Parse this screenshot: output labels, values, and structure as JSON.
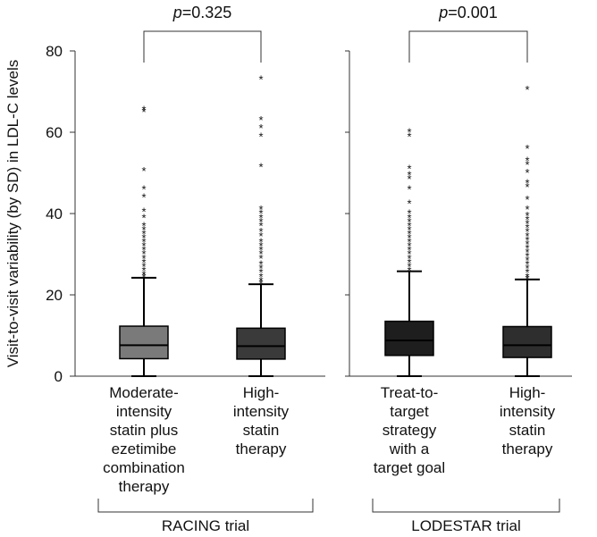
{
  "chart_data": {
    "type": "boxplot",
    "ylabel": "Visit-to-visit variability (by SD) in LDL-C levels",
    "ylim": [
      0,
      80
    ],
    "yticks": [
      0,
      20,
      40,
      60,
      80
    ],
    "groups": [
      {
        "name": "RACING trial",
        "p_value": "0.325",
        "series": [
          {
            "label_lines": [
              "Moderate-",
              "intensity",
              "statin plus",
              "ezetimibe",
              "combination",
              "therapy"
            ],
            "color": "#7a7a7a",
            "min": 0,
            "q1": 4.3,
            "median": 7.6,
            "q3": 12.3,
            "whisker_high": 24.2,
            "outliers": [
              66.0,
              65.5,
              51.0,
              46.5,
              44.5,
              41.0,
              39.5,
              37.5,
              36.5,
              35.5,
              34.5,
              33.5,
              32.5,
              31.5,
              30.5,
              29.5,
              28.5,
              27.5,
              26.5,
              25.5,
              24.8
            ]
          },
          {
            "label_lines": [
              "High-",
              "intensity",
              "statin",
              "therapy"
            ],
            "color": "#3a3a3a",
            "min": 0,
            "q1": 4.2,
            "median": 7.4,
            "q3": 11.8,
            "whisker_high": 22.6,
            "outliers": [
              73.5,
              63.5,
              61.5,
              59.5,
              52.0,
              41.5,
              40.5,
              39.5,
              38.5,
              37.5,
              36.0,
              35.0,
              33.5,
              32.5,
              31.5,
              30.5,
              29.5,
              28.0,
              27.0,
              26.0,
              25.0,
              24.0,
              23.3
            ]
          }
        ]
      },
      {
        "name": "LODESTAR trial",
        "p_value": "0.001",
        "series": [
          {
            "label_lines": [
              "Treat-to-",
              "target",
              "strategy",
              "with a",
              "target goal"
            ],
            "color": "#1e1e1e",
            "min": 0,
            "q1": 5.1,
            "median": 8.8,
            "q3": 13.5,
            "whisker_high": 25.8,
            "outliers": [
              60.5,
              59.5,
              51.5,
              50.0,
              49.0,
              46.5,
              43.0,
              40.5,
              39.5,
              38.5,
              37.5,
              36.5,
              35.5,
              34.5,
              33.5,
              32.5,
              31.5,
              30.5,
              29.5,
              28.5,
              27.5,
              26.5
            ]
          },
          {
            "label_lines": [
              "High-",
              "intensity",
              "statin",
              "therapy"
            ],
            "color": "#2e2e2e",
            "min": 0,
            "q1": 4.6,
            "median": 7.6,
            "q3": 12.2,
            "whisker_high": 23.8,
            "outliers": [
              71.0,
              56.5,
              53.5,
              52.5,
              50.5,
              48.0,
              47.0,
              44.0,
              41.5,
              40.0,
              39.0,
              38.0,
              37.0,
              36.0,
              35.0,
              34.0,
              33.0,
              32.0,
              31.0,
              30.0,
              29.0,
              28.0,
              27.0,
              26.0,
              25.0,
              24.4
            ]
          }
        ]
      }
    ]
  }
}
